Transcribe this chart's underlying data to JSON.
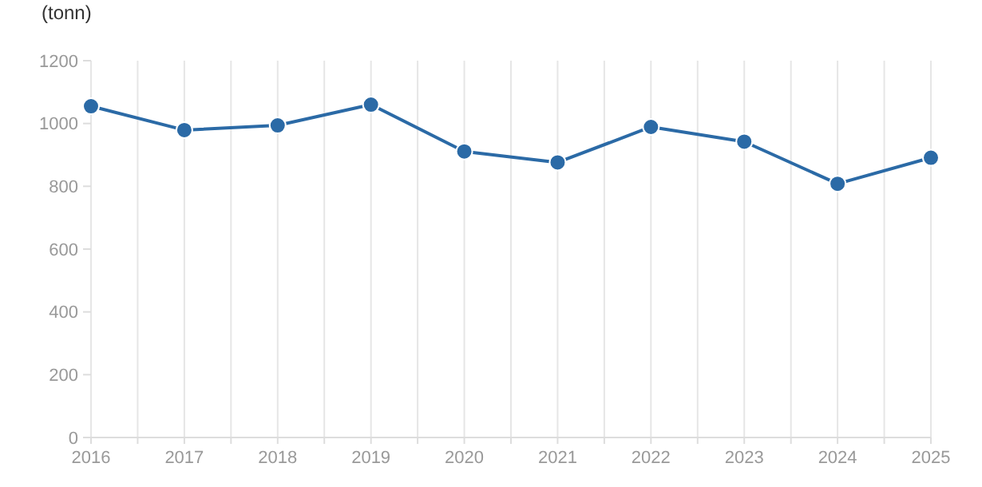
{
  "chart_data": {
    "type": "line",
    "ylabel": "(tonn)",
    "x": [
      2016,
      2017,
      2018,
      2019,
      2020,
      2021,
      2022,
      2023,
      2024,
      2025
    ],
    "series": [
      {
        "color": "#2b6aa6",
        "values": [
          1055,
          979,
          994,
          1060,
          911,
          876,
          989,
          942,
          808,
          891
        ]
      }
    ],
    "xlim": [
      2016,
      2025
    ],
    "xticks": [
      2016,
      {
        "value": 2016.5,
        "label": null
      },
      2017,
      {
        "value": 2017.5,
        "label": null
      },
      2018,
      {
        "value": 2018.5,
        "label": null
      },
      2019,
      {
        "value": 2019.5,
        "label": null
      },
      2020,
      {
        "value": 2020.5,
        "label": null
      },
      2021,
      {
        "value": 2021.5,
        "label": null
      },
      2022,
      {
        "value": 2022.5,
        "label": null
      },
      2023,
      {
        "value": 2023.5,
        "label": null
      },
      2024,
      {
        "value": 2024.5,
        "label": null
      },
      2025
    ],
    "ylim": [
      0,
      1200
    ],
    "yticks": [
      0,
      200,
      400,
      600,
      800,
      1000,
      1200
    ],
    "grid": "x",
    "marker": "circle",
    "line_style": "solid"
  }
}
